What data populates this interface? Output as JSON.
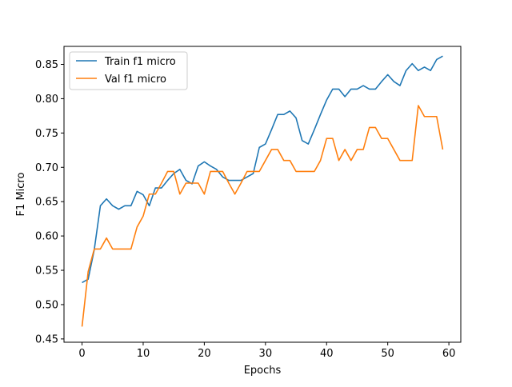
{
  "chart_data": {
    "type": "line",
    "title": "",
    "xlabel": "Epochs",
    "ylabel": "F1 Micro",
    "xlim": [
      -2.95,
      61.95
    ],
    "ylim": [
      0.4452,
      0.8762
    ],
    "grid": false,
    "legend_position": "upper-left",
    "x_ticks": [
      0,
      10,
      20,
      30,
      40,
      50,
      60
    ],
    "y_ticks": [
      0.45,
      0.5,
      0.55,
      0.6,
      0.65,
      0.7,
      0.75,
      0.8,
      0.85
    ],
    "x_tick_labels": [
      "0",
      "10",
      "20",
      "30",
      "40",
      "50",
      "60"
    ],
    "y_tick_labels": [
      "0.45",
      "0.50",
      "0.55",
      "0.60",
      "0.65",
      "0.70",
      "0.75",
      "0.80",
      "0.85"
    ],
    "x": [
      0,
      1,
      2,
      3,
      4,
      5,
      6,
      7,
      8,
      9,
      10,
      11,
      12,
      13,
      14,
      15,
      16,
      17,
      18,
      19,
      20,
      21,
      22,
      23,
      24,
      25,
      26,
      27,
      28,
      29,
      30,
      31,
      32,
      33,
      34,
      35,
      36,
      37,
      38,
      39,
      40,
      41,
      42,
      43,
      44,
      45,
      46,
      47,
      48,
      49,
      50,
      51,
      52,
      53,
      54,
      55,
      56,
      57,
      58,
      59
    ],
    "series": [
      {
        "name": "Train f1 micro",
        "color": "#1f77b4",
        "values": [
          0.532,
          0.537,
          0.58,
          0.644,
          0.654,
          0.644,
          0.639,
          0.644,
          0.644,
          0.665,
          0.66,
          0.644,
          0.67,
          0.67,
          0.681,
          0.691,
          0.697,
          0.681,
          0.676,
          0.702,
          0.708,
          0.702,
          0.697,
          0.686,
          0.681,
          0.681,
          0.681,
          0.686,
          0.691,
          0.729,
          0.734,
          0.755,
          0.777,
          0.777,
          0.782,
          0.772,
          0.739,
          0.734,
          0.755,
          0.777,
          0.798,
          0.814,
          0.814,
          0.803,
          0.814,
          0.814,
          0.819,
          0.814,
          0.814,
          0.825,
          0.835,
          0.825,
          0.819,
          0.841,
          0.851,
          0.841,
          0.846,
          0.841,
          0.857,
          0.862
        ]
      },
      {
        "name": "Val f1 micro",
        "color": "#ff7f0e",
        "values": [
          0.468,
          0.548,
          0.581,
          0.581,
          0.597,
          0.581,
          0.581,
          0.581,
          0.581,
          0.613,
          0.629,
          0.661,
          0.661,
          0.677,
          0.694,
          0.694,
          0.661,
          0.677,
          0.677,
          0.677,
          0.661,
          0.694,
          0.694,
          0.694,
          0.677,
          0.661,
          0.677,
          0.694,
          0.694,
          0.694,
          0.71,
          0.726,
          0.726,
          0.71,
          0.71,
          0.694,
          0.694,
          0.694,
          0.694,
          0.71,
          0.742,
          0.742,
          0.71,
          0.726,
          0.71,
          0.726,
          0.726,
          0.758,
          0.758,
          0.742,
          0.742,
          0.726,
          0.71,
          0.71,
          0.71,
          0.79,
          0.774,
          0.774,
          0.774,
          0.726
        ]
      }
    ]
  }
}
